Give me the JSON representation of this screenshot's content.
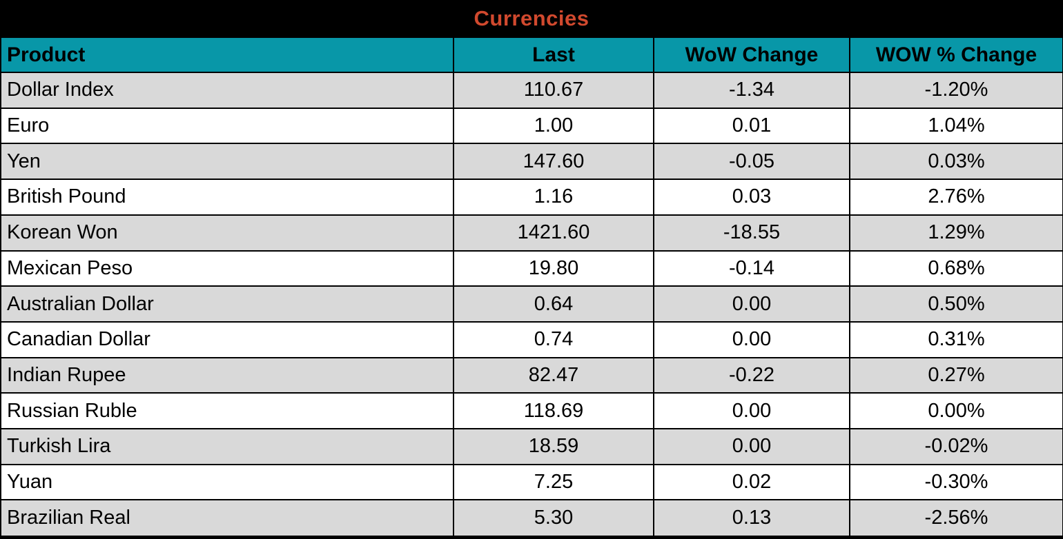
{
  "title": "Currencies",
  "colors": {
    "title_bar_bg": "#000000",
    "title_text": "#d1492e",
    "header_bg": "#0897a8",
    "header_text": "#000000",
    "row_alt_bg": "#d9d9d9",
    "row_bg": "#ffffff",
    "border": "#000000"
  },
  "table": {
    "columns": [
      "Product",
      "Last",
      "WoW Change",
      "WOW % Change"
    ],
    "rows": [
      {
        "product": "Dollar Index",
        "last": "110.67",
        "wow_change": "-1.34",
        "wow_pct_change": "-1.20%"
      },
      {
        "product": "Euro",
        "last": "1.00",
        "wow_change": "0.01",
        "wow_pct_change": "1.04%"
      },
      {
        "product": "Yen",
        "last": "147.60",
        "wow_change": "-0.05",
        "wow_pct_change": "0.03%"
      },
      {
        "product": "British Pound",
        "last": "1.16",
        "wow_change": "0.03",
        "wow_pct_change": "2.76%"
      },
      {
        "product": "Korean Won",
        "last": "1421.60",
        "wow_change": "-18.55",
        "wow_pct_change": "1.29%"
      },
      {
        "product": "Mexican Peso",
        "last": "19.80",
        "wow_change": "-0.14",
        "wow_pct_change": "0.68%"
      },
      {
        "product": "Australian Dollar",
        "last": "0.64",
        "wow_change": "0.00",
        "wow_pct_change": "0.50%"
      },
      {
        "product": "Canadian Dollar",
        "last": "0.74",
        "wow_change": "0.00",
        "wow_pct_change": "0.31%"
      },
      {
        "product": "Indian Rupee",
        "last": "82.47",
        "wow_change": "-0.22",
        "wow_pct_change": "0.27%"
      },
      {
        "product": "Russian Ruble",
        "last": "118.69",
        "wow_change": "0.00",
        "wow_pct_change": "0.00%"
      },
      {
        "product": "Turkish Lira",
        "last": "18.59",
        "wow_change": "0.00",
        "wow_pct_change": "-0.02%"
      },
      {
        "product": "Yuan",
        "last": "7.25",
        "wow_change": "0.02",
        "wow_pct_change": "-0.30%"
      },
      {
        "product": "Brazilian Real",
        "last": "5.30",
        "wow_change": "0.13",
        "wow_pct_change": "-2.56%"
      }
    ]
  },
  "chart_data": {
    "type": "table",
    "title": "Currencies",
    "columns": [
      "Product",
      "Last",
      "WoW Change",
      "WOW % Change"
    ],
    "rows": [
      [
        "Dollar Index",
        110.67,
        -1.34,
        -1.2
      ],
      [
        "Euro",
        1.0,
        0.01,
        1.04
      ],
      [
        "Yen",
        147.6,
        -0.05,
        0.03
      ],
      [
        "British Pound",
        1.16,
        0.03,
        2.76
      ],
      [
        "Korean Won",
        1421.6,
        -18.55,
        1.29
      ],
      [
        "Mexican Peso",
        19.8,
        -0.14,
        0.68
      ],
      [
        "Australian Dollar",
        0.64,
        0.0,
        0.5
      ],
      [
        "Canadian Dollar",
        0.74,
        0.0,
        0.31
      ],
      [
        "Indian Rupee",
        82.47,
        -0.22,
        0.27
      ],
      [
        "Russian Ruble",
        118.69,
        0.0,
        0.0
      ],
      [
        "Turkish Lira",
        18.59,
        0.0,
        -0.02
      ],
      [
        "Yuan",
        7.25,
        0.02,
        -0.3
      ],
      [
        "Brazilian Real",
        5.3,
        0.13,
        -2.56
      ]
    ],
    "notes": "WoW % Change values are percentages"
  }
}
